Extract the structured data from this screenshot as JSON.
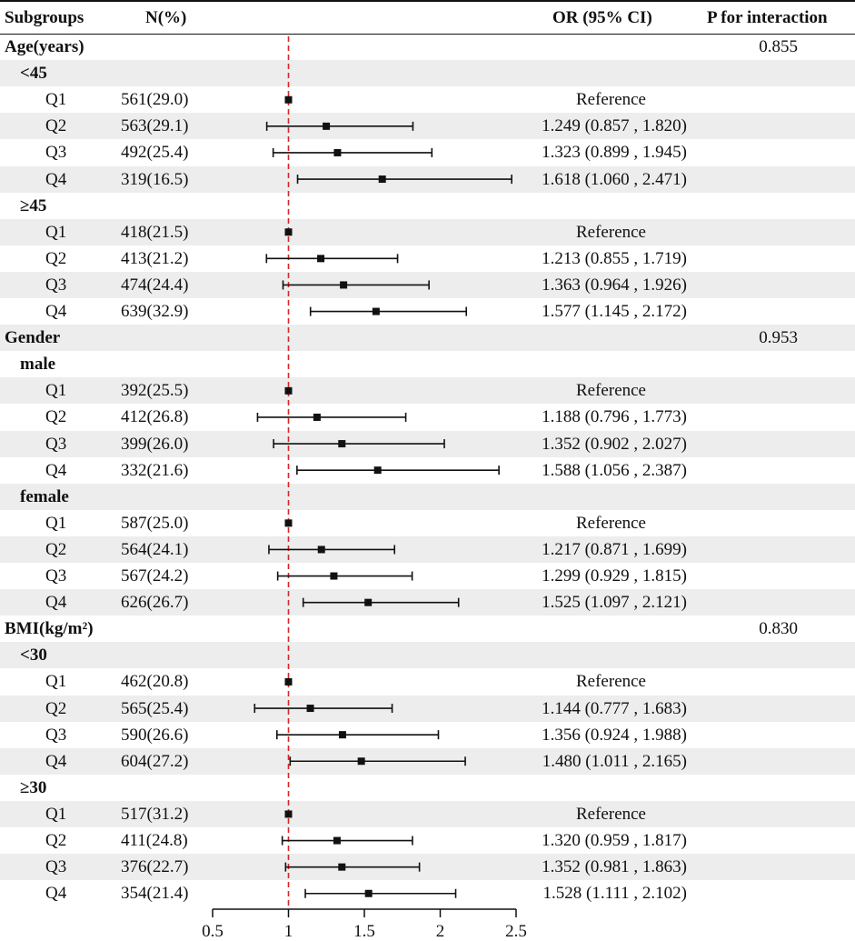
{
  "headers": {
    "subgroups": "Subgroups",
    "n_percent": "N(%)",
    "or_ci": "OR (95% CI)",
    "p_interaction": "P for interaction"
  },
  "rows": [
    {
      "type": "group",
      "label": "Age(years)",
      "p": "0.855"
    },
    {
      "type": "subgroup",
      "label": "<45"
    },
    {
      "type": "data",
      "label": "Q1",
      "n": "561(29.0)",
      "or_text": "Reference"
    },
    {
      "type": "data",
      "label": "Q2",
      "n": "563(29.1)",
      "or_text": "1.249 (0.857 , 1.820)"
    },
    {
      "type": "data",
      "label": "Q3",
      "n": "492(25.4)",
      "or_text": "1.323 (0.899 , 1.945)"
    },
    {
      "type": "data",
      "label": "Q4",
      "n": "319(16.5)",
      "or_text": "1.618 (1.060 , 2.471)"
    },
    {
      "type": "subgroup",
      "label": "≥45"
    },
    {
      "type": "data",
      "label": "Q1",
      "n": "418(21.5)",
      "or_text": "Reference"
    },
    {
      "type": "data",
      "label": "Q2",
      "n": "413(21.2)",
      "or_text": "1.213 (0.855 , 1.719)"
    },
    {
      "type": "data",
      "label": "Q3",
      "n": "474(24.4)",
      "or_text": "1.363 (0.964 , 1.926)"
    },
    {
      "type": "data",
      "label": "Q4",
      "n": "639(32.9)",
      "or_text": "1.577 (1.145 , 2.172)"
    },
    {
      "type": "group",
      "label": "Gender",
      "p": "0.953"
    },
    {
      "type": "subgroup",
      "label": "male"
    },
    {
      "type": "data",
      "label": "Q1",
      "n": "392(25.5)",
      "or_text": "Reference"
    },
    {
      "type": "data",
      "label": "Q2",
      "n": "412(26.8)",
      "or_text": "1.188 (0.796 , 1.773)"
    },
    {
      "type": "data",
      "label": "Q3",
      "n": "399(26.0)",
      "or_text": "1.352 (0.902 , 2.027)"
    },
    {
      "type": "data",
      "label": "Q4",
      "n": "332(21.6)",
      "or_text": "1.588 (1.056 , 2.387)"
    },
    {
      "type": "subgroup",
      "label": "female"
    },
    {
      "type": "data",
      "label": "Q1",
      "n": "587(25.0)",
      "or_text": "Reference"
    },
    {
      "type": "data",
      "label": "Q2",
      "n": "564(24.1)",
      "or_text": "1.217 (0.871 , 1.699)"
    },
    {
      "type": "data",
      "label": "Q3",
      "n": "567(24.2)",
      "or_text": "1.299 (0.929 , 1.815)"
    },
    {
      "type": "data",
      "label": "Q4",
      "n": "626(26.7)",
      "or_text": "1.525 (1.097 , 2.121)"
    },
    {
      "type": "group",
      "label": "BMI(kg/m²)",
      "p": "0.830"
    },
    {
      "type": "subgroup",
      "label": "<30"
    },
    {
      "type": "data",
      "label": "Q1",
      "n": "462(20.8)",
      "or_text": "Reference"
    },
    {
      "type": "data",
      "label": "Q2",
      "n": "565(25.4)",
      "or_text": "1.144 (0.777 , 1.683)"
    },
    {
      "type": "data",
      "label": "Q3",
      "n": "590(26.6)",
      "or_text": "1.356 (0.924 , 1.988)"
    },
    {
      "type": "data",
      "label": "Q4",
      "n": "604(27.2)",
      "or_text": "1.480 (1.011 , 2.165)"
    },
    {
      "type": "subgroup",
      "label": "≥30"
    },
    {
      "type": "data",
      "label": "Q1",
      "n": "517(31.2)",
      "or_text": "Reference"
    },
    {
      "type": "data",
      "label": "Q2",
      "n": "411(24.8)",
      "or_text": "1.320 (0.959 , 1.817)"
    },
    {
      "type": "data",
      "label": "Q3",
      "n": "376(22.7)",
      "or_text": "1.352 (0.981 , 1.863)"
    },
    {
      "type": "data",
      "label": "Q4",
      "n": "354(21.4)",
      "or_text": "1.528 (1.111 , 2.102)"
    }
  ],
  "chart_data": {
    "type": "forest",
    "title": "",
    "xlabel": "",
    "ylabel": "",
    "xlim": [
      0.5,
      2.5
    ],
    "xticks": [
      0.5,
      1,
      1.5,
      2,
      2.5
    ],
    "xtick_labels": [
      "0.5",
      "1",
      "1.5",
      "2",
      "2.5"
    ],
    "reference_line": 1,
    "reference_line_color": "#d62728",
    "marker_color": "#111111",
    "points": [
      {
        "row": 2,
        "or": 1.0,
        "lo": 1.0,
        "hi": 1.0
      },
      {
        "row": 3,
        "or": 1.249,
        "lo": 0.857,
        "hi": 1.82
      },
      {
        "row": 4,
        "or": 1.323,
        "lo": 0.899,
        "hi": 1.945
      },
      {
        "row": 5,
        "or": 1.618,
        "lo": 1.06,
        "hi": 2.471
      },
      {
        "row": 7,
        "or": 1.0,
        "lo": 1.0,
        "hi": 1.0
      },
      {
        "row": 8,
        "or": 1.213,
        "lo": 0.855,
        "hi": 1.719
      },
      {
        "row": 9,
        "or": 1.363,
        "lo": 0.964,
        "hi": 1.926
      },
      {
        "row": 10,
        "or": 1.577,
        "lo": 1.145,
        "hi": 2.172
      },
      {
        "row": 13,
        "or": 1.0,
        "lo": 1.0,
        "hi": 1.0
      },
      {
        "row": 14,
        "or": 1.188,
        "lo": 0.796,
        "hi": 1.773
      },
      {
        "row": 15,
        "or": 1.352,
        "lo": 0.902,
        "hi": 2.027
      },
      {
        "row": 16,
        "or": 1.588,
        "lo": 1.056,
        "hi": 2.387
      },
      {
        "row": 18,
        "or": 1.0,
        "lo": 1.0,
        "hi": 1.0
      },
      {
        "row": 19,
        "or": 1.217,
        "lo": 0.871,
        "hi": 1.699
      },
      {
        "row": 20,
        "or": 1.299,
        "lo": 0.929,
        "hi": 1.815
      },
      {
        "row": 21,
        "or": 1.525,
        "lo": 1.097,
        "hi": 2.121
      },
      {
        "row": 24,
        "or": 1.0,
        "lo": 1.0,
        "hi": 1.0
      },
      {
        "row": 25,
        "or": 1.144,
        "lo": 0.777,
        "hi": 1.683
      },
      {
        "row": 26,
        "or": 1.356,
        "lo": 0.924,
        "hi": 1.988
      },
      {
        "row": 27,
        "or": 1.48,
        "lo": 1.011,
        "hi": 2.165
      },
      {
        "row": 29,
        "or": 1.0,
        "lo": 1.0,
        "hi": 1.0
      },
      {
        "row": 30,
        "or": 1.32,
        "lo": 0.959,
        "hi": 1.817
      },
      {
        "row": 31,
        "or": 1.352,
        "lo": 0.981,
        "hi": 1.863
      },
      {
        "row": 32,
        "or": 1.528,
        "lo": 1.111,
        "hi": 2.102
      }
    ]
  }
}
